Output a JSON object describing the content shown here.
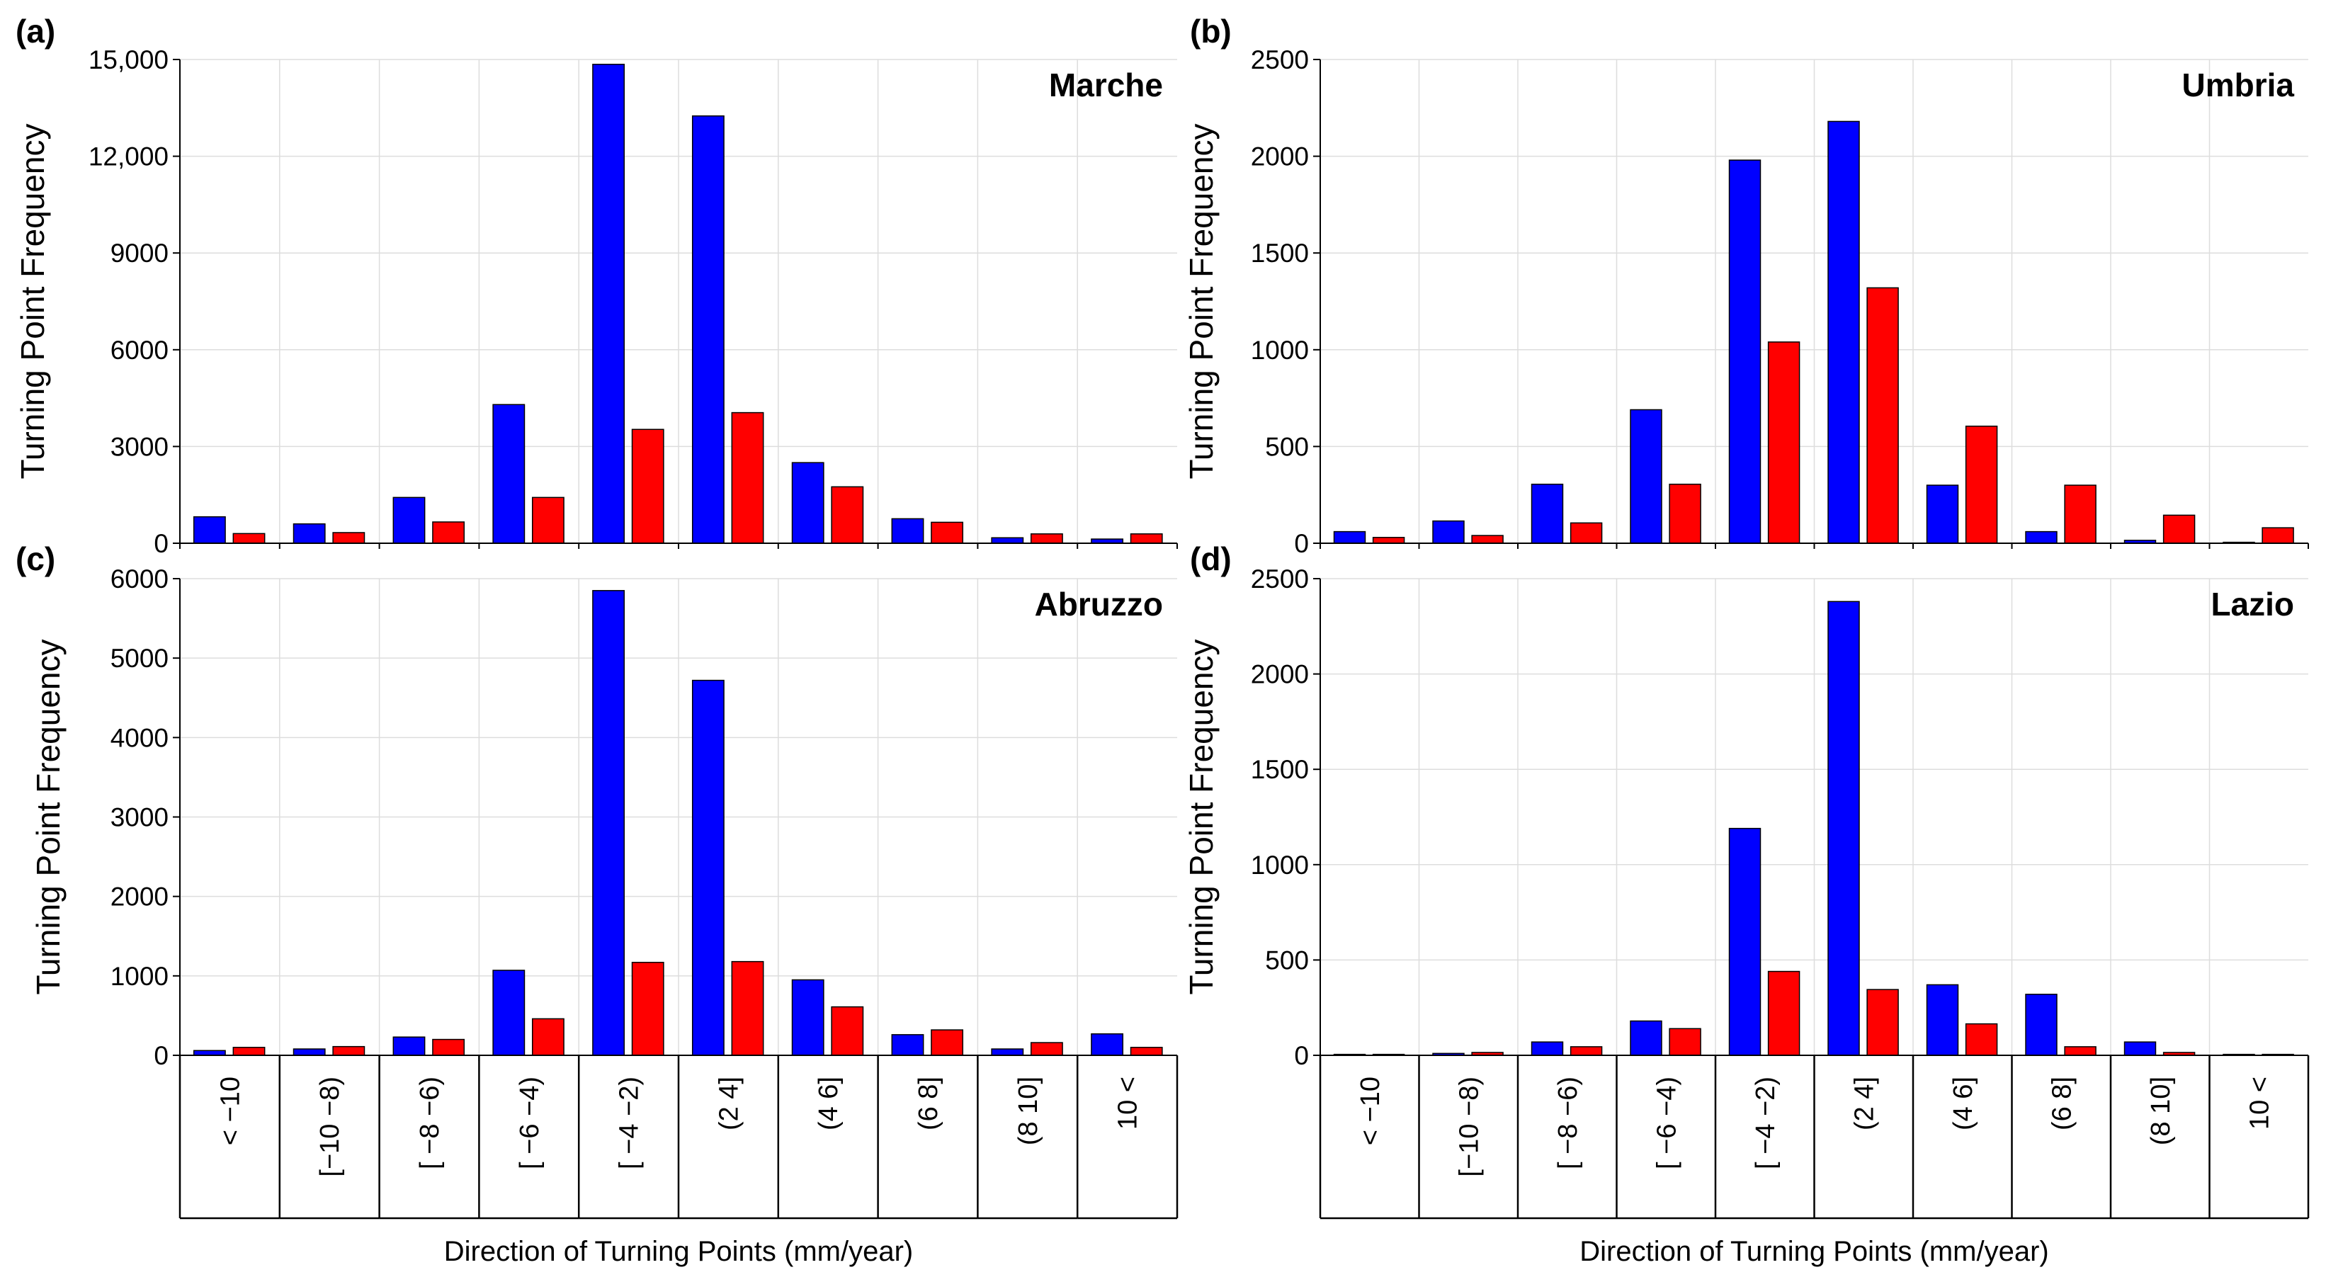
{
  "figure": {
    "xlabel": "Direction of Turning Points (mm/year)",
    "ylabel": "Turning Point Frequency",
    "series_colors": [
      "#0000ff",
      "#ff0000"
    ],
    "categories": [
      "< −10",
      "[−10  −8)",
      "[ −8  −6)",
      "[ −6  −4)",
      "[ −4  −2)",
      "(2  4]",
      "(4  6]",
      "(6  8]",
      "(8  10]",
      "10 <"
    ]
  },
  "chart_data": [
    {
      "type": "bar",
      "panel": "(a)",
      "title": "Marche",
      "ylabel": "Turning Point Frequency",
      "ylim": [
        0,
        15000
      ],
      "yticks": [
        0,
        3000,
        6000,
        9000,
        12000,
        15000
      ],
      "ytick_labels": [
        "0",
        "3000",
        "6000",
        "9000",
        "12,000",
        "15,000"
      ],
      "series": [
        {
          "name": "blue",
          "color": "#0000ff",
          "values": [
            820,
            600,
            1420,
            4300,
            14850,
            13250,
            2500,
            760,
            170,
            130
          ]
        },
        {
          "name": "red",
          "color": "#ff0000",
          "values": [
            300,
            330,
            660,
            1420,
            3530,
            4050,
            1750,
            650,
            290,
            290
          ]
        }
      ]
    },
    {
      "type": "bar",
      "panel": "(b)",
      "title": "Umbria",
      "ylabel": "Turning Point Frequency",
      "ylim": [
        0,
        2500
      ],
      "yticks": [
        0,
        500,
        1000,
        1500,
        2000,
        2500
      ],
      "ytick_labels": [
        "0",
        "500",
        "1000",
        "1500",
        "2000",
        "2500"
      ],
      "series": [
        {
          "name": "blue",
          "color": "#0000ff",
          "values": [
            60,
            115,
            305,
            690,
            1980,
            2180,
            300,
            60,
            15,
            5
          ]
        },
        {
          "name": "red",
          "color": "#ff0000",
          "values": [
            30,
            40,
            105,
            305,
            1040,
            1320,
            605,
            300,
            145,
            80
          ]
        }
      ]
    },
    {
      "type": "bar",
      "panel": "(c)",
      "title": "Abruzzo",
      "ylabel": "Turning Point Frequency",
      "xlabel": "Direction of Turning Points (mm/year)",
      "ylim": [
        0,
        6000
      ],
      "yticks": [
        0,
        1000,
        2000,
        3000,
        4000,
        5000,
        6000
      ],
      "ytick_labels": [
        "0",
        "1000",
        "2000",
        "3000",
        "4000",
        "5000",
        "6000"
      ],
      "series": [
        {
          "name": "blue",
          "color": "#0000ff",
          "values": [
            60,
            80,
            230,
            1070,
            5850,
            4720,
            950,
            260,
            80,
            270
          ]
        },
        {
          "name": "red",
          "color": "#ff0000",
          "values": [
            100,
            110,
            200,
            460,
            1170,
            1180,
            610,
            320,
            160,
            100
          ]
        }
      ]
    },
    {
      "type": "bar",
      "panel": "(d)",
      "title": "Lazio",
      "ylabel": "Turning Point Frequency",
      "xlabel": "Direction of Turning Points (mm/year)",
      "ylim": [
        0,
        2500
      ],
      "yticks": [
        0,
        500,
        1000,
        1500,
        2000,
        2500
      ],
      "ytick_labels": [
        "0",
        "500",
        "1000",
        "1500",
        "2000",
        "2500"
      ],
      "series": [
        {
          "name": "blue",
          "color": "#0000ff",
          "values": [
            5,
            10,
            70,
            180,
            1190,
            2380,
            370,
            320,
            70,
            5
          ]
        },
        {
          "name": "red",
          "color": "#ff0000",
          "values": [
            5,
            15,
            45,
            140,
            440,
            345,
            165,
            45,
            15,
            5
          ]
        }
      ]
    }
  ]
}
